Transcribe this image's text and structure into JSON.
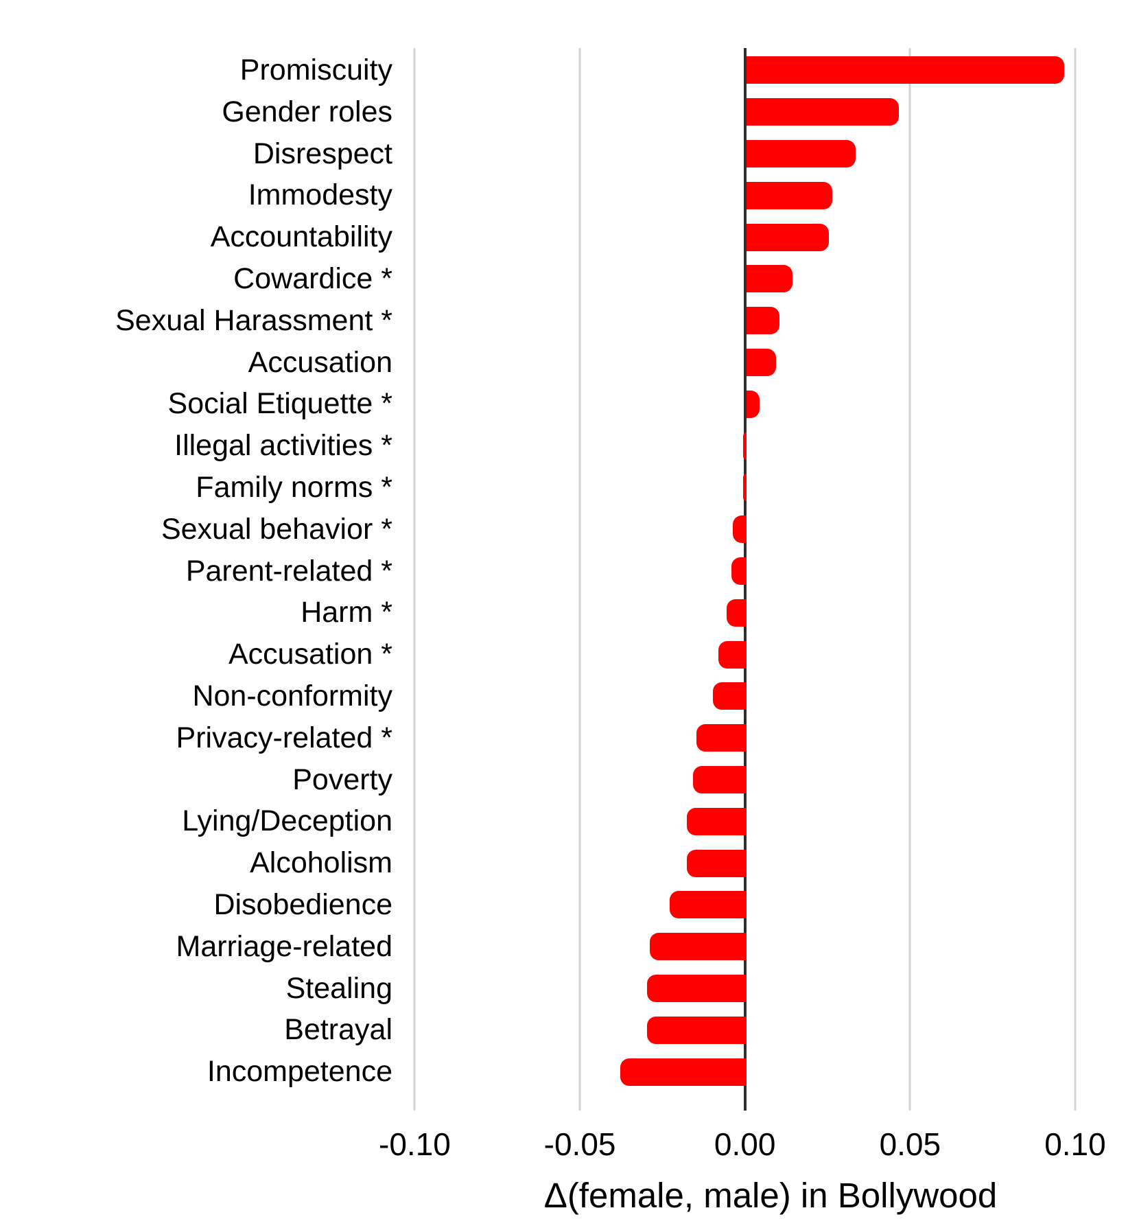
{
  "chart_data": {
    "type": "bar",
    "orientation": "horizontal",
    "title": "",
    "xlabel": "Δ(female, male) in Bollywood",
    "ylabel": "",
    "xlim": [
      -0.103,
      0.1185
    ],
    "grid": "vertical-only",
    "bar_color": "#ff0000",
    "zero_line_color": "#2e2e2e",
    "grid_color": "#d3d3d3",
    "x_ticks": [
      {
        "value": -0.1,
        "label": "-0.10"
      },
      {
        "value": -0.05,
        "label": "-0.05"
      },
      {
        "value": 0.0,
        "label": "0.00"
      },
      {
        "value": 0.05,
        "label": "0.05"
      },
      {
        "value": 0.1,
        "label": "0.10"
      }
    ],
    "categories": [
      "Promiscuity",
      "Gender roles",
      "Disrespect",
      "Immodesty",
      "Accountability",
      "Cowardice *",
      "Sexual Harassment *",
      "Accusation",
      "Social Etiquette *",
      "Illegal activities *",
      "Family norms *",
      "Sexual behavior *",
      "Parent-related *",
      "Harm *",
      "Accusation *",
      "Non-conformity",
      "Privacy-related *",
      "Poverty",
      "Lying/Deception",
      "Alcoholism",
      "Disobedience",
      "Marriage-related",
      "Stealing",
      "Betrayal",
      "Incompetence"
    ],
    "values": [
      0.096,
      0.046,
      0.033,
      0.026,
      0.025,
      0.014,
      0.01,
      0.009,
      0.004,
      -0.001,
      -0.001,
      -0.004,
      -0.0045,
      -0.006,
      -0.0085,
      -0.01,
      -0.015,
      -0.016,
      -0.018,
      -0.018,
      -0.023,
      -0.029,
      -0.03,
      -0.03,
      -0.038
    ]
  }
}
